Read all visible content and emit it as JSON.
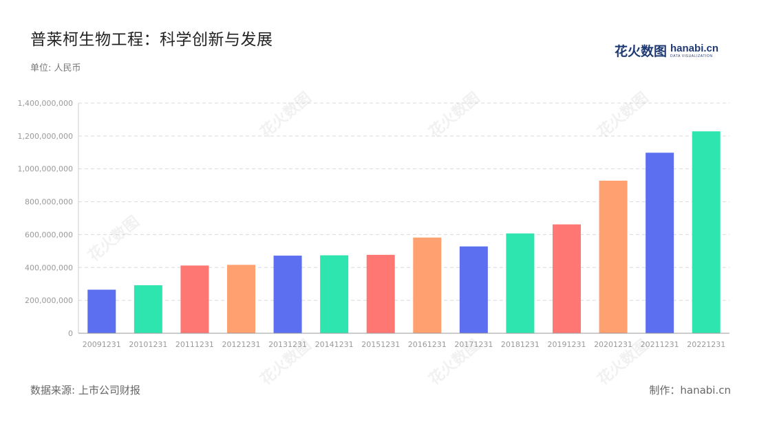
{
  "title": "普莱柯生物工程：科学创新与发展",
  "unit": "单位: 人民币",
  "logo": {
    "cn": "花火数图",
    "en": "hanabi.cn",
    "sub": "DATA VISUALIZATION"
  },
  "source": "数据来源: 上市公司财报",
  "credit": "制作：hanabi.cn",
  "watermark": "花火数图 hanabi.cn",
  "colors": {
    "palette": [
      "#5b6ff0",
      "#2ee5b0",
      "#ff7772",
      "#ffa070"
    ],
    "grid": "#d9d9d9",
    "axis": "#999999",
    "tick_text": "#999999"
  },
  "chart_data": {
    "type": "bar",
    "categories": [
      "20091231",
      "20101231",
      "20111231",
      "20121231",
      "20131231",
      "20141231",
      "20151231",
      "20161231",
      "20171231",
      "20181231",
      "20191231",
      "20201231",
      "20211231",
      "20221231"
    ],
    "values": [
      265000000,
      292000000,
      412000000,
      416000000,
      472000000,
      474000000,
      477000000,
      582000000,
      528000000,
      607000000,
      662000000,
      928000000,
      1098000000,
      1228000000
    ],
    "bar_colors": [
      "#5b6ff0",
      "#2ee5b0",
      "#ff7772",
      "#ffa070",
      "#5b6ff0",
      "#2ee5b0",
      "#ff7772",
      "#ffa070",
      "#5b6ff0",
      "#2ee5b0",
      "#ff7772",
      "#ffa070",
      "#5b6ff0",
      "#2ee5b0"
    ],
    "title": "普莱柯生物工程：科学创新与发展",
    "xlabel": "",
    "ylabel": "",
    "ylim": [
      0,
      1400000000
    ],
    "yticks": [
      0,
      200000000,
      400000000,
      600000000,
      800000000,
      1000000000,
      1200000000,
      1400000000
    ],
    "ytick_labels": [
      "0",
      "200,000,000",
      "400,000,000",
      "600,000,000",
      "800,000,000",
      "1,000,000,000",
      "1,200,000,000",
      "1,400,000,000"
    ],
    "grid": true,
    "legend": "none"
  }
}
